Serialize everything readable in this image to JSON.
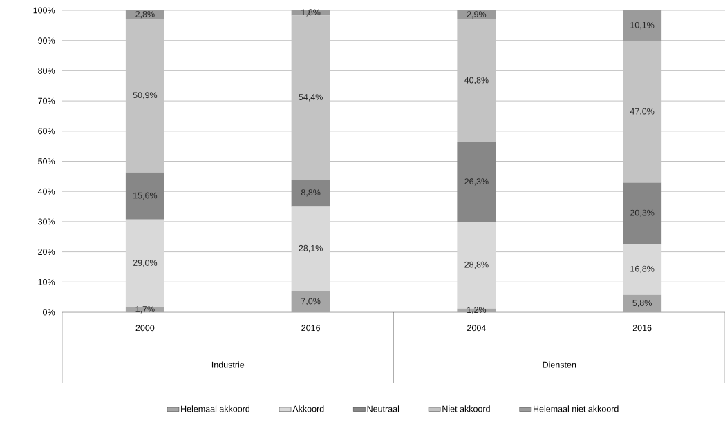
{
  "chart_data": {
    "type": "bar",
    "stacked": true,
    "categories": [
      "2000",
      "2016",
      "2004",
      "2016"
    ],
    "series": [
      {
        "name": "Helemaal akkoord",
        "color": "#a6a6a6",
        "values": [
          1.7,
          7.0,
          1.2,
          5.8
        ],
        "value_labels": [
          "1,7%",
          "7,0%",
          "1,2%",
          "5,8%"
        ]
      },
      {
        "name": "Akkoord",
        "color": "#d9d9d9",
        "values": [
          29.0,
          28.1,
          28.8,
          16.8
        ],
        "value_labels": [
          "29,0%",
          "28,1%",
          "28,8%",
          "16,8%"
        ]
      },
      {
        "name": "Neutraal",
        "color": "#878787",
        "values": [
          15.6,
          8.8,
          26.3,
          20.3
        ],
        "value_labels": [
          "15,6%",
          "8,8%",
          "26,3%",
          "20,3%"
        ]
      },
      {
        "name": "Niet akkoord",
        "color": "#c3c3c3",
        "values": [
          50.9,
          54.4,
          40.8,
          47.0
        ],
        "value_labels": [
          "50,9%",
          "54,4%",
          "40,8%",
          "47,0%"
        ]
      },
      {
        "name": "Helemaal niet akkoord",
        "color": "#9b9b9b",
        "values": [
          2.8,
          1.8,
          2.9,
          10.1
        ],
        "value_labels": [
          "2,8%",
          "1,8%",
          "2,9%",
          "10,1%"
        ]
      }
    ],
    "ylim": [
      0,
      100
    ],
    "yticks": [
      {
        "value": 0,
        "label": "0%"
      },
      {
        "value": 10,
        "label": "10%"
      },
      {
        "value": 20,
        "label": "20%"
      },
      {
        "value": 30,
        "label": "30%"
      },
      {
        "value": 40,
        "label": "40%"
      },
      {
        "value": 50,
        "label": "50%"
      },
      {
        "value": 60,
        "label": "60%"
      },
      {
        "value": 70,
        "label": "70%"
      },
      {
        "value": 80,
        "label": "80%"
      },
      {
        "value": 90,
        "label": "90%"
      },
      {
        "value": 100,
        "label": "100%"
      }
    ],
    "grid": "y",
    "legend": "bottom",
    "annotations": [
      "Industrie",
      "Diensten"
    ]
  }
}
